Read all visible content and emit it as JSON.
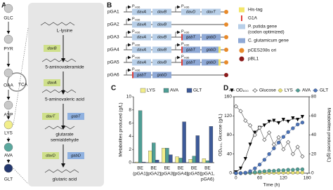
{
  "pathway": {
    "label": "A",
    "metabolites": [
      {
        "name": "GLC",
        "color": "#c9c9c9"
      },
      {
        "name": "PYR",
        "color": "#c9c9c9"
      },
      {
        "name": "OAA",
        "color": "#c9c9c9"
      },
      {
        "name": "ASP",
        "color": "#c9c9c9"
      },
      {
        "name": "LYS",
        "color": "#f2ee8a"
      },
      {
        "name": "AVA",
        "color": "#5aa89e"
      },
      {
        "name": "GLT",
        "color": "#24386e"
      }
    ],
    "cycle": "TCA",
    "compounds": [
      [
        "L-lysine"
      ],
      [
        "5-aminovaleramide"
      ],
      [
        "5-aminovaleric acid"
      ],
      [
        "glutarate",
        "semialdehyde"
      ],
      [
        "glutaric acid"
      ]
    ],
    "enzymes": [
      [
        {
          "name": "davB",
          "color": "#cfe08a"
        }
      ],
      [
        {
          "name": "davA",
          "color": "#cfe08a"
        }
      ],
      [
        {
          "name": "davT",
          "color": "#cfe08a"
        },
        {
          "name": "gabT",
          "color": "#8fb1e0"
        }
      ],
      [
        {
          "name": "davD",
          "color": "#cfe08a"
        },
        {
          "name": "gabD",
          "color": "#8fb1e0"
        }
      ]
    ]
  },
  "constructs": {
    "label": "B",
    "plasmids": [
      {
        "name": "pGA1",
        "ori_color": "#e88a2a",
        "cassettes": [
          {
            "promoter": {
              "main": "P",
              "sub": "H36"
            },
            "genes": [
              {
                "name": "davA",
                "color": "#b8cfe8"
              },
              {
                "name": "davB",
                "color": "#b8cfe8"
              }
            ]
          },
          {
            "promoter": {
              "main": "P",
              "sub": "H36"
            },
            "genes": [
              {
                "name": "davD",
                "color": "#b8cfe8"
              },
              {
                "name": "davT",
                "color": "#b8cfe8"
              }
            ]
          }
        ]
      },
      {
        "name": "pGA2",
        "ori_color": "#e88a2a",
        "cassettes": [
          {
            "promoter": {
              "main": "P",
              "sub": "H36"
            },
            "genes": [
              {
                "name": "davA",
                "color": "#b8cfe8"
              },
              {
                "name": "davB",
                "color": "#b8cfe8"
              }
            ]
          }
        ]
      },
      {
        "name": "pGA3",
        "ori_color": "#e88a2a",
        "cassettes": [
          {
            "promoter": {
              "main": "P",
              "sub": "H36"
            },
            "genes": [
              {
                "name": "davA",
                "color": "#b8cfe8"
              },
              {
                "name": "davB",
                "color": "#b8cfe8"
              }
            ]
          },
          {
            "promoter": {
              "main": "P",
              "sub": "H36"
            },
            "genes": [
              {
                "name": "gabT",
                "color": "#8fa9d6",
                "cap": "#e0403a"
              },
              {
                "name": "gabD",
                "color": "#8fa9d6"
              }
            ]
          }
        ]
      },
      {
        "name": "pGA4",
        "ori_color": "#e88a2a",
        "cassettes": [
          {
            "promoter": {
              "main": "P",
              "sub": "H36"
            },
            "genes": [
              {
                "name": "davA",
                "color": "#b8cfe8"
              },
              {
                "name": "davB",
                "color": "#b8cfe8"
              }
            ]
          },
          {
            "promoter": {
              "main": "P",
              "sub": "H36"
            },
            "genes": [
              {
                "name": "gabT",
                "color": "#8fa9d6",
                "cap": "#e0403a"
              },
              {
                "name": "gabD",
                "color": "#8fa9d6",
                "tag": "#f3e66b"
              }
            ]
          }
        ]
      },
      {
        "name": "pGA5",
        "ori_color": "#e88a2a",
        "cassettes": [
          {
            "promoter": {
              "main": "P",
              "sub": "H36"
            },
            "genes": [
              {
                "name": "davA",
                "color": "#b8cfe8"
              },
              {
                "name": "davB",
                "color": "#b8cfe8"
              }
            ]
          },
          {
            "promoter": {
              "main": "P",
              "sub": "H36"
            },
            "genes": [
              {
                "name": "gabT",
                "color": "#8fa9d6",
                "cap": "#e0403a"
              },
              {
                "name": "gabD",
                "color": "#8fa9d6",
                "tag": "#f3e66b"
              }
            ]
          }
        ]
      },
      {
        "name": "pGA6",
        "ori_color": "#8b1a1a",
        "cassettes": [
          {
            "promoter": {
              "main": "P",
              "sub": "H36"
            },
            "genes": [
              {
                "name": "gabT",
                "color": "#8fa9d6",
                "cap": "#e0403a"
              },
              {
                "name": "gabD",
                "color": "#8fa9d6"
              }
            ]
          }
        ]
      }
    ],
    "legend": [
      {
        "label": [
          "His-tag"
        ],
        "color": "#f3e66b",
        "shape": "tag"
      },
      {
        "label": [
          "G1A"
        ],
        "color": "#e0403a",
        "shape": "bar"
      },
      {
        "label": [
          "P. putida gene",
          "(codon optimized)"
        ],
        "color": "#b8cfe8",
        "shape": "box"
      },
      {
        "label": [
          "C. glutamicum gene"
        ],
        "color": "#8fa9d6",
        "shape": "box"
      },
      {
        "label": [
          "pCES208s ori"
        ],
        "color": "#e88a2a",
        "shape": "circle"
      },
      {
        "label": [
          "pBL1"
        ],
        "color": "#8b1a1a",
        "shape": "circle"
      }
    ]
  },
  "chart_data": [
    {
      "type": "bar",
      "panel": "C",
      "y_label": "Metabolites produced (g/L)",
      "categories": [
        [
          "BE",
          "(pGA1)"
        ],
        [
          "BE",
          "(pGA2)"
        ],
        [
          "BE",
          "(pGA3)"
        ],
        [
          "BE",
          "(pGA4)"
        ],
        [
          "BE",
          "(pGA5)"
        ],
        [
          "BE",
          "(pGA1,",
          "pGA6)"
        ]
      ],
      "series": [
        {
          "name": "LYS",
          "color": "#f2ee8a",
          "values": [
            0.1,
            1.8,
            2.2,
            0.9,
            0.5,
            0.6
          ]
        },
        {
          "name": "AVA",
          "color": "#4f9e95",
          "values": [
            7.9,
            3.0,
            2.2,
            0.7,
            1.0,
            0.3
          ]
        },
        {
          "name": "GLT",
          "color": "#3d5a99",
          "values": [
            0.1,
            0.4,
            1.2,
            6.2,
            4.1,
            5.5
          ]
        }
      ],
      "ylim": [
        0,
        10
      ],
      "yticks": [
        0,
        2,
        4,
        6,
        8,
        10
      ]
    },
    {
      "type": "line",
      "panel": "D",
      "y_label": "OD₆₀₀, Glucose (g/L)",
      "y2_label": "Metabolites produced (g/L)",
      "x_label": "Time (h)",
      "x": [
        0,
        12,
        24,
        36,
        48,
        60,
        72,
        84,
        96,
        108,
        120,
        132,
        144,
        156,
        168
      ],
      "series": [
        {
          "name": "OD₆₀₀",
          "color": "#000000",
          "marker": "triangle",
          "values": [
            2,
            10,
            30,
            60,
            85,
            95,
            100,
            108,
            110,
            105,
            112,
            108,
            115,
            112,
            118
          ]
        },
        {
          "name": "Glucose",
          "color": "#555555",
          "marker": "diamond",
          "values": [
            140,
            130,
            110,
            100,
            80,
            95,
            70,
            85,
            60,
            75,
            50,
            65,
            40,
            55,
            35
          ]
        },
        {
          "name": "LYS",
          "color": "#e8e070",
          "marker": "circle",
          "axis": "y2",
          "values": [
            0,
            0,
            0.2,
            0.3,
            0.3,
            0.4,
            0.4,
            0.5,
            0.5,
            0.5,
            0.6,
            0.6,
            0.6,
            0.7,
            0.7
          ]
        },
        {
          "name": "AVA",
          "color": "#4f9e95",
          "marker": "circle",
          "axis": "y2",
          "values": [
            0,
            0,
            0.2,
            0.5,
            1,
            1.5,
            2,
            2.5,
            2.5,
            3,
            3,
            3.5,
            3.5,
            4,
            4
          ]
        },
        {
          "name": "GLT",
          "color": "#4a72b8",
          "marker": "circle",
          "axis": "y2",
          "values": [
            0,
            0,
            0.5,
            2,
            5,
            9,
            14,
            20,
            26,
            32,
            38,
            43,
            47,
            51,
            53
          ]
        }
      ],
      "xlim": [
        -5,
        185
      ],
      "xticks": [
        0,
        60,
        120,
        180
      ],
      "ylim": [
        0,
        160
      ],
      "yticks": [
        0,
        40,
        80,
        120,
        160
      ],
      "y2lim": [
        0,
        80
      ],
      "y2ticks": [
        0,
        20,
        40,
        60,
        80
      ]
    }
  ]
}
